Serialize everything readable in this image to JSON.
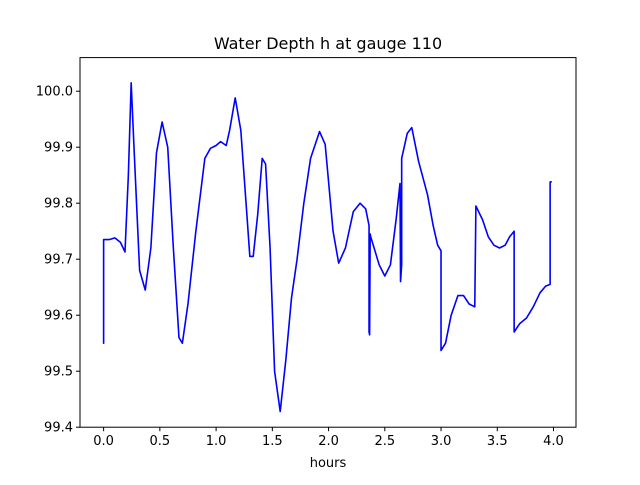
{
  "chart_data": {
    "type": "line",
    "title": "Water Depth h at gauge 110",
    "xlabel": "hours",
    "ylabel": "",
    "xlim": [
      -0.21,
      4.2
    ],
    "ylim": [
      99.4,
      100.06
    ],
    "xticks": [
      0.0,
      0.5,
      1.0,
      1.5,
      2.0,
      2.5,
      3.0,
      3.5,
      4.0
    ],
    "xtick_labels": [
      "0.0",
      "0.5",
      "1.0",
      "1.5",
      "2.0",
      "2.5",
      "3.0",
      "3.5",
      "4.0"
    ],
    "yticks": [
      99.4,
      99.5,
      99.6,
      99.7,
      99.8,
      99.9,
      100.0
    ],
    "ytick_labels": [
      "99.4",
      "99.5",
      "99.6",
      "99.7",
      "99.8",
      "99.9",
      "100.0"
    ],
    "grid": false,
    "legend": null,
    "series": [
      {
        "color": "#0000ff",
        "points": [
          [
            0.0,
            99.55
          ],
          [
            0.0,
            99.735
          ],
          [
            0.05,
            99.735
          ],
          [
            0.1,
            99.738
          ],
          [
            0.15,
            99.73
          ],
          [
            0.19,
            99.713
          ],
          [
            0.22,
            99.85
          ],
          [
            0.245,
            100.015
          ],
          [
            0.27,
            99.9
          ],
          [
            0.32,
            99.68
          ],
          [
            0.37,
            99.645
          ],
          [
            0.42,
            99.72
          ],
          [
            0.47,
            99.89
          ],
          [
            0.52,
            99.945
          ],
          [
            0.57,
            99.9
          ],
          [
            0.62,
            99.72
          ],
          [
            0.67,
            99.56
          ],
          [
            0.7,
            99.55
          ],
          [
            0.75,
            99.62
          ],
          [
            0.82,
            99.75
          ],
          [
            0.9,
            99.88
          ],
          [
            0.95,
            99.898
          ],
          [
            1.0,
            99.903
          ],
          [
            1.04,
            99.91
          ],
          [
            1.09,
            99.903
          ],
          [
            1.12,
            99.93
          ],
          [
            1.17,
            99.988
          ],
          [
            1.22,
            99.93
          ],
          [
            1.27,
            99.79
          ],
          [
            1.3,
            99.705
          ],
          [
            1.33,
            99.705
          ],
          [
            1.37,
            99.78
          ],
          [
            1.41,
            99.88
          ],
          [
            1.44,
            99.87
          ],
          [
            1.48,
            99.72
          ],
          [
            1.52,
            99.5
          ],
          [
            1.57,
            99.428
          ],
          [
            1.62,
            99.52
          ],
          [
            1.67,
            99.63
          ],
          [
            1.72,
            99.7
          ],
          [
            1.78,
            99.8
          ],
          [
            1.84,
            99.88
          ],
          [
            1.92,
            99.928
          ],
          [
            1.97,
            99.905
          ],
          [
            2.04,
            99.75
          ],
          [
            2.09,
            99.693
          ],
          [
            2.15,
            99.72
          ],
          [
            2.22,
            99.785
          ],
          [
            2.28,
            99.8
          ],
          [
            2.33,
            99.79
          ],
          [
            2.36,
            99.76
          ],
          [
            2.36,
            99.57
          ],
          [
            2.365,
            99.565
          ],
          [
            2.37,
            99.745
          ],
          [
            2.375,
            99.74
          ],
          [
            2.45,
            99.69
          ],
          [
            2.5,
            99.67
          ],
          [
            2.55,
            99.69
          ],
          [
            2.6,
            99.77
          ],
          [
            2.635,
            99.835
          ],
          [
            2.64,
            99.66
          ],
          [
            2.65,
            99.69
          ],
          [
            2.65,
            99.88
          ],
          [
            2.7,
            99.925
          ],
          [
            2.74,
            99.935
          ],
          [
            2.8,
            99.875
          ],
          [
            2.88,
            99.815
          ],
          [
            2.93,
            99.76
          ],
          [
            2.97,
            99.725
          ],
          [
            3.0,
            99.715
          ],
          [
            3.0,
            99.537
          ],
          [
            3.04,
            99.55
          ],
          [
            3.09,
            99.6
          ],
          [
            3.15,
            99.635
          ],
          [
            3.2,
            99.635
          ],
          [
            3.25,
            99.62
          ],
          [
            3.3,
            99.615
          ],
          [
            3.31,
            99.795
          ],
          [
            3.37,
            99.77
          ],
          [
            3.42,
            99.74
          ],
          [
            3.47,
            99.725
          ],
          [
            3.52,
            99.72
          ],
          [
            3.57,
            99.725
          ],
          [
            3.61,
            99.74
          ],
          [
            3.65,
            99.75
          ],
          [
            3.65,
            99.57
          ],
          [
            3.7,
            99.585
          ],
          [
            3.76,
            99.595
          ],
          [
            3.82,
            99.615
          ],
          [
            3.88,
            99.64
          ],
          [
            3.93,
            99.652
          ],
          [
            3.97,
            99.655
          ],
          [
            3.97,
            99.838
          ],
          [
            3.98,
            99.838
          ]
        ]
      }
    ]
  }
}
